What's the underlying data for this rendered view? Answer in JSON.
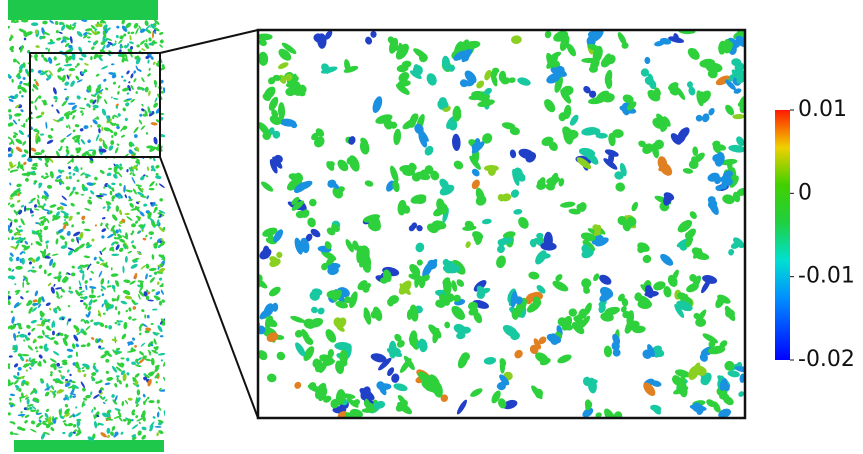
{
  "colorbar": {
    "range": [
      -0.02,
      0.01
    ],
    "ticks": [
      0.01,
      0,
      -0.01,
      -0.02
    ]
  }
}
